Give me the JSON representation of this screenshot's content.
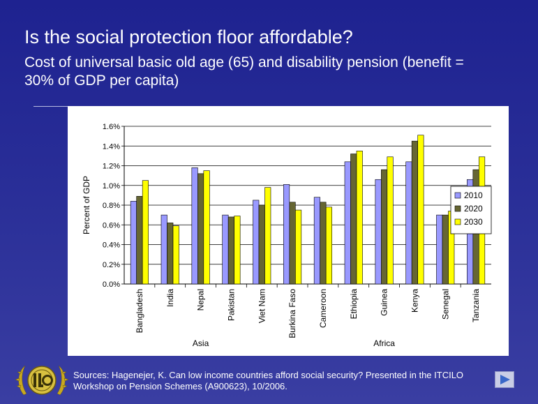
{
  "slide": {
    "title": "Is the social protection floor affordable?",
    "subtitle": "Cost of universal basic old age (65) and disability pension (benefit = 30% of GDP per capita)",
    "sources": "Sources: Hagenejer, K. Can low income countries afford social security? Presented in the ITCILO Workshop on Pension Schemes (A900623), 10/2006.",
    "colors": {
      "background": "#2a2f98",
      "text": "#ffffff"
    },
    "icons": {
      "logo": "ilo-logo",
      "next": "next-arrow-icon"
    }
  },
  "chart_data": {
    "type": "bar",
    "ylabel": "Percent of GDP",
    "ylim": [
      0,
      0.016
    ],
    "ytick_format": "percent",
    "yticks": [
      0,
      0.002,
      0.004,
      0.006,
      0.008,
      0.01,
      0.012,
      0.014,
      0.016
    ],
    "ytick_labels": [
      "0.0%",
      "0.2%",
      "0.4%",
      "0.6%",
      "0.8%",
      "1.0%",
      "1.2%",
      "1.4%",
      "1.6%"
    ],
    "grid": true,
    "legend_position": "right",
    "categories": [
      "Bangladesh",
      "India",
      "Nepal",
      "Pakistan",
      "Viet Nam",
      "Burkina Faso",
      "Cameroon",
      "Ethiopia",
      "Guinea",
      "Kenya",
      "Senegal",
      "Tanzania"
    ],
    "groups": [
      {
        "label": "Asia",
        "start": 0,
        "end": 4
      },
      {
        "label": "Africa",
        "start": 5,
        "end": 11
      }
    ],
    "series": [
      {
        "name": "2010",
        "color": "#9999ff",
        "values": [
          0.0084,
          0.007,
          0.0118,
          0.007,
          0.0085,
          0.0101,
          0.0088,
          0.0124,
          0.0106,
          0.0124,
          0.007,
          0.0106
        ]
      },
      {
        "name": "2020",
        "color": "#666633",
        "values": [
          0.0089,
          0.0062,
          0.0112,
          0.0068,
          0.008,
          0.0083,
          0.0083,
          0.0132,
          0.0116,
          0.0145,
          0.007,
          0.0116
        ]
      },
      {
        "name": "2030",
        "color": "#ffff00",
        "values": [
          0.0105,
          0.0059,
          0.0115,
          0.0069,
          0.0098,
          0.0075,
          0.0078,
          0.0135,
          0.0129,
          0.0151,
          0.0074,
          0.0129
        ]
      }
    ]
  }
}
